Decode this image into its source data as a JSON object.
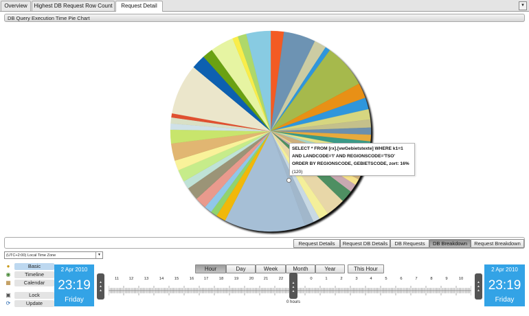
{
  "tabs": [
    {
      "label": "Overview"
    },
    {
      "label": "Highest DB Request Row Count"
    },
    {
      "label": "Request Detail"
    }
  ],
  "panel": {
    "title": "DB Query Execution Time Pie Chart"
  },
  "chart_data": {
    "type": "pie",
    "title": "",
    "values": [
      2.6,
      6.3,
      2.4,
      1.0,
      8.7,
      3.0,
      2.3,
      2.0,
      1.6,
      1.4,
      1.3,
      1.6,
      1.4,
      1.2,
      3.6,
      1.2,
      1.6,
      2.4,
      3.8,
      1.9,
      1.3,
      1.8,
      16,
      1.9,
      1.3,
      1.5,
      2.3,
      2.6,
      1.6,
      2.4,
      2.0,
      3.4,
      2.7,
      1.2,
      1.2,
      0.8,
      10,
      2.8,
      2.1,
      4.6,
      1.1,
      1.7,
      4.8
    ],
    "colors": [
      "#f35b23",
      "#6d93b3",
      "#cccca3",
      "#2f96dc",
      "#a6b94c",
      "#e89016",
      "#2f96dc",
      "#d6d680",
      "#c4c08b",
      "#6c8fad",
      "#e8aa3c",
      "#3a9a88",
      "#e6e18a",
      "#a8d4c7",
      "#ceb07d",
      "#f6e18b",
      "#c8a9b1",
      "#4e8f62",
      "#e8d7a8",
      "#f4ef9a",
      "#c8d9e4",
      "#a1b7cb",
      "#a6bfd6",
      "#f1b80a",
      "#91d36e",
      "#90c7ea",
      "#e99a8d",
      "#9b9477",
      "#bfe2d7",
      "#c6ec8a",
      "#f9f29a",
      "#e1b672",
      "#c8e56c",
      "#cfe1e8",
      "#d9e0c6",
      "#e05030",
      "#ebe6cb",
      "#0d60b0",
      "#6aa112",
      "#e6f4a2",
      "#f9ed4a",
      "#aed86a",
      "#88cbe2"
    ]
  },
  "tooltip": {
    "line1": "SELECT * FROM [rx].[vwGebietstexte] WHERE k1=1",
    "line2": "AND LANDCODE='I' AND REGIONSCODE='TSO'",
    "line3": "ORDER BY REGIONSCODE, GEBIETSCODE, zort: 16%",
    "line4": "(120)"
  },
  "subtabs": [
    {
      "label": "Request Details"
    },
    {
      "label": "Request DB Details"
    },
    {
      "label": "DB Requests"
    },
    {
      "label": "DB Breakdown"
    },
    {
      "label": "Request Breakdown"
    }
  ],
  "timezone": {
    "value": "(UTC+2:00) Local Time Zone"
  },
  "left_buttons": [
    {
      "label": "Basic"
    },
    {
      "label": "Timeline"
    },
    {
      "label": "Calendar"
    },
    {
      "label": "Lock"
    },
    {
      "label": "Update"
    }
  ],
  "start": {
    "date": "2 Apr 2010",
    "time": "23:19",
    "day": "Friday"
  },
  "end": {
    "date": "2 Apr 2010",
    "time": "23:19",
    "day": "Friday"
  },
  "zoom": [
    {
      "label": "Hour"
    },
    {
      "label": "Day"
    },
    {
      "label": "Week"
    },
    {
      "label": "Month"
    },
    {
      "label": "Year"
    },
    {
      "label": "This Hour"
    }
  ],
  "ticks": [
    "11",
    "12",
    "13",
    "14",
    "15",
    "16",
    "17",
    "18",
    "19",
    "20",
    "21",
    "22",
    "23",
    "0",
    "1",
    "2",
    "3",
    "4",
    "5",
    "6",
    "7",
    "8",
    "9",
    "10"
  ],
  "cursor": {
    "label": "0 hours"
  },
  "icons": {
    "basic": "basic-icon",
    "timeline": "timeline-icon",
    "calendar": "calendar-icon",
    "lock": "lock-icon",
    "update": "update-icon",
    "dropdown": "chevron-down-icon"
  }
}
